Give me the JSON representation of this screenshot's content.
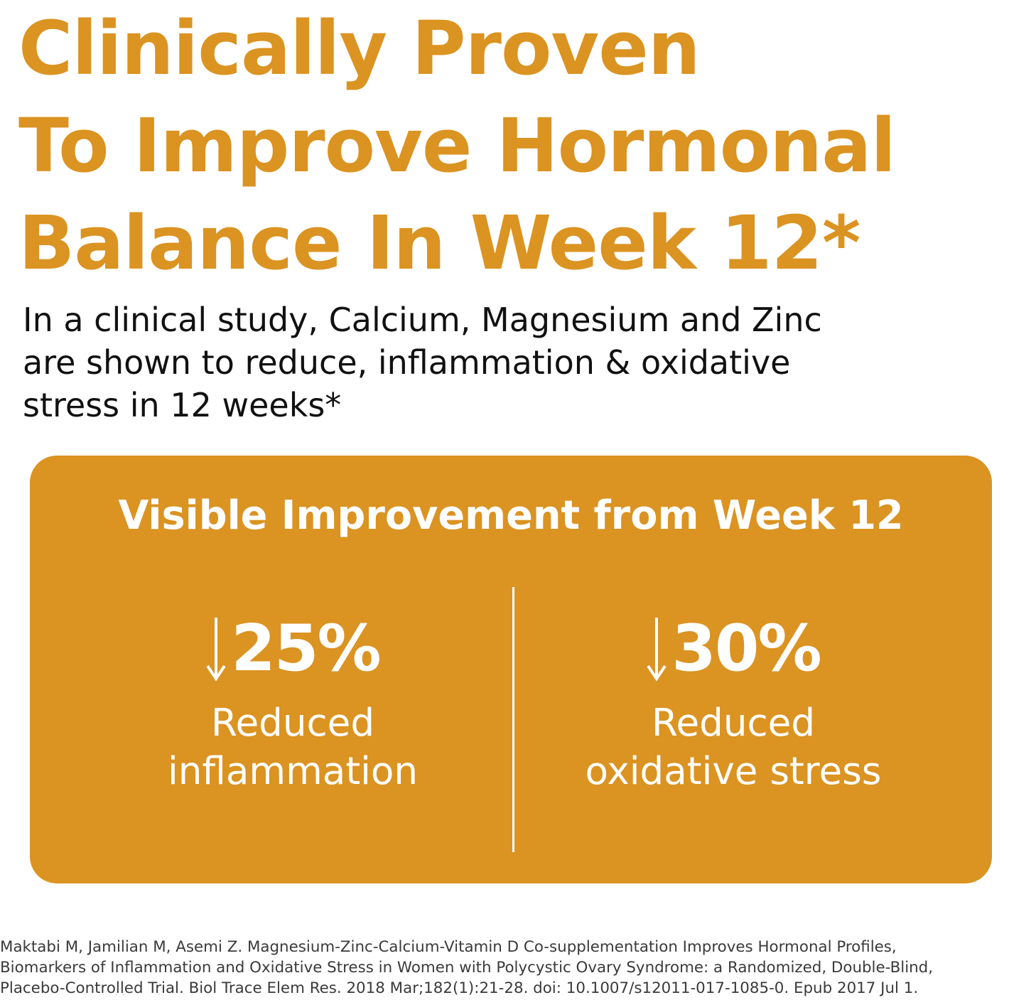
{
  "headline": {
    "lines": [
      "Clinically Proven",
      "To Improve Hormonal",
      "Balance In Week 12*"
    ]
  },
  "subtitle": {
    "lines": [
      "In a clinical study, Calcium, Magnesium and  Zinc",
      "are shown to reduce, inflammation & oxidative",
      "stress in 12 weeks*"
    ]
  },
  "card": {
    "title": "Visible Improvement from Week 12",
    "stats": [
      {
        "icon": "down-arrow-icon",
        "value": "25%",
        "label_lines": [
          "Reduced",
          "inflammation"
        ]
      },
      {
        "icon": "down-arrow-icon",
        "value": "30%",
        "label_lines": [
          "Reduced",
          "oxidative stress"
        ]
      }
    ]
  },
  "citation": {
    "lines": [
      "Maktabi M, Jamilian M, Asemi Z. Magnesium-Zinc-Calcium-Vitamin D Co-supplementation Improves Hormonal Profiles,",
      "Biomarkers of Inflammation and Oxidative Stress in Women with Polycystic Ovary Syndrome: a Randomized, Double-Blind,",
      "Placebo-Controlled Trial. Biol Trace Elem Res. 2018 Mar;182(1):21-28. doi: 10.1007/s12011-017-1085-0. Epub 2017 Jul 1."
    ]
  },
  "colors": {
    "accent": "#DB9321",
    "text": "#111111",
    "card_text": "#FFFFFF",
    "citation_text": "#3A3A3A",
    "background": "#FFFFFF"
  }
}
